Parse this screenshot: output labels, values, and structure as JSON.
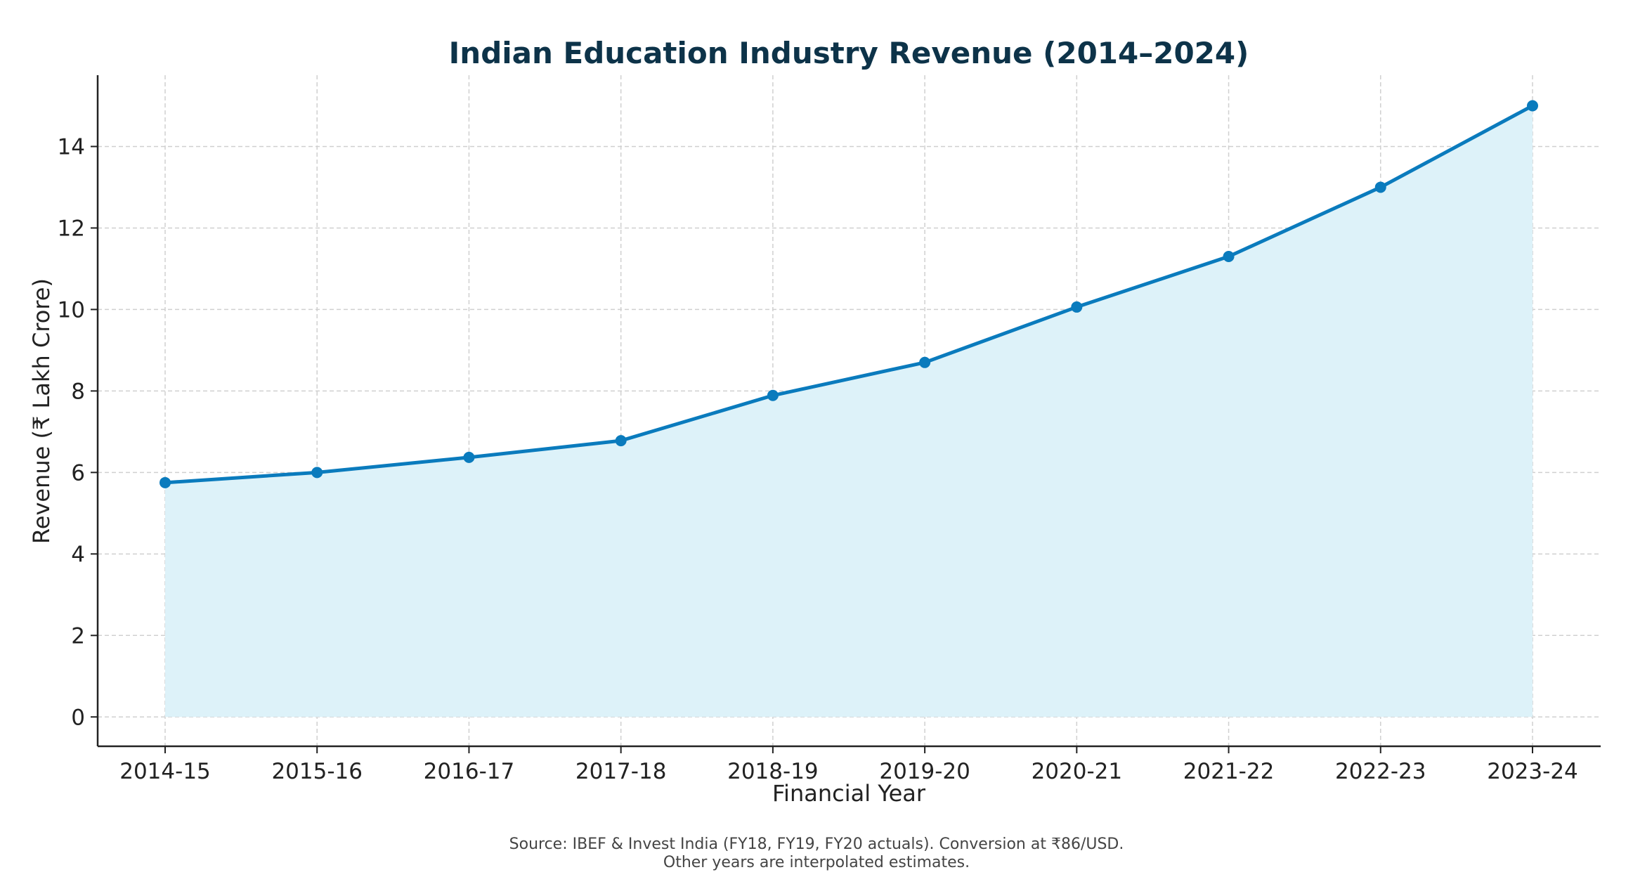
{
  "chart_data": {
    "type": "area",
    "title": "Indian Education Industry Revenue (2014–2024)",
    "xlabel": "Financial Year",
    "ylabel": "Revenue (₹ Lakh Crore)",
    "categories": [
      "2014-15",
      "2015-16",
      "2016-17",
      "2017-18",
      "2018-19",
      "2019-20",
      "2020-21",
      "2021-22",
      "2022-23",
      "2023-24"
    ],
    "values": [
      5.75,
      6.0,
      6.37,
      6.78,
      7.89,
      8.7,
      10.06,
      11.3,
      13.0,
      15.0
    ],
    "ylim": [
      -0.72,
      15.75
    ],
    "yticks": [
      0,
      2,
      4,
      6,
      8,
      10,
      12,
      14
    ],
    "grid": true,
    "line_color": "#0a7bbd",
    "fill_color": "#ddf2f9",
    "markers": true,
    "footnote": [
      "Source: IBEF & Invest India (FY18, FY19, FY20 actuals). Conversion at ₹86/USD.",
      "Other years are interpolated estimates."
    ]
  }
}
